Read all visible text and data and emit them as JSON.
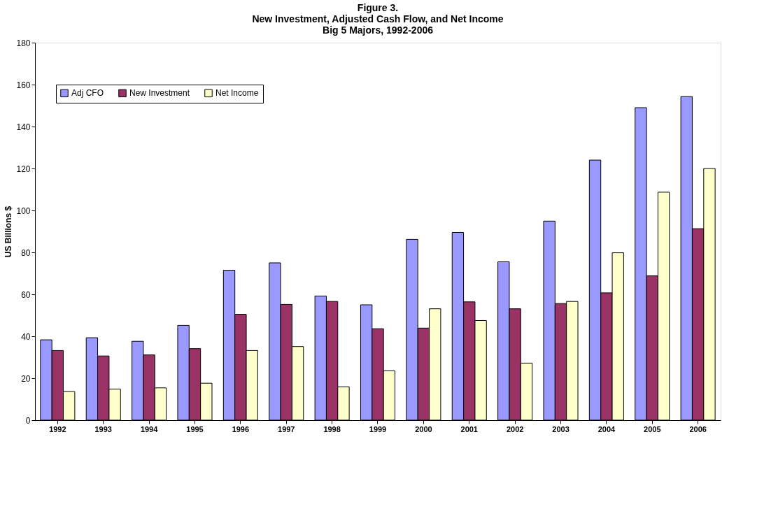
{
  "chart_data": {
    "type": "bar",
    "title": [
      "Figure 3.",
      "New Investment, Adjusted Cash Flow, and Net Income",
      "Big 5 Majors, 1992-2006"
    ],
    "ylabel": "US Billions $",
    "categories": [
      "1992",
      "1993",
      "1994",
      "1995",
      "1996",
      "1997",
      "1998",
      "1999",
      "2000",
      "2001",
      "2002",
      "2003",
      "2004",
      "2005",
      "2006"
    ],
    "series": [
      {
        "name": "Adj CFO",
        "color": "#9999ff",
        "values": [
          38.3,
          39.3,
          37.6,
          45.2,
          71.5,
          75,
          59.2,
          55,
          86.2,
          89.5,
          75.5,
          94.9,
          124,
          149,
          154.3
        ]
      },
      {
        "name": "New Investment",
        "color": "#993366",
        "values": [
          33.2,
          30.6,
          31.1,
          34.1,
          50.5,
          55.2,
          56.6,
          43.6,
          43.9,
          56.4,
          53.1,
          55.6,
          60.7,
          68.8,
          91.3
        ]
      },
      {
        "name": "Net Income",
        "color": "#ffffcc",
        "values": [
          13.6,
          14.8,
          15.4,
          17.6,
          33.2,
          35.1,
          15.9,
          23.5,
          53.1,
          47.5,
          27.2,
          56.6,
          79.8,
          108.7,
          120
        ]
      }
    ],
    "ylim": [
      0,
      180
    ],
    "yticks": [
      0,
      20,
      40,
      60,
      80,
      100,
      120,
      140,
      160,
      180
    ],
    "grid": false,
    "legend": "top left"
  }
}
